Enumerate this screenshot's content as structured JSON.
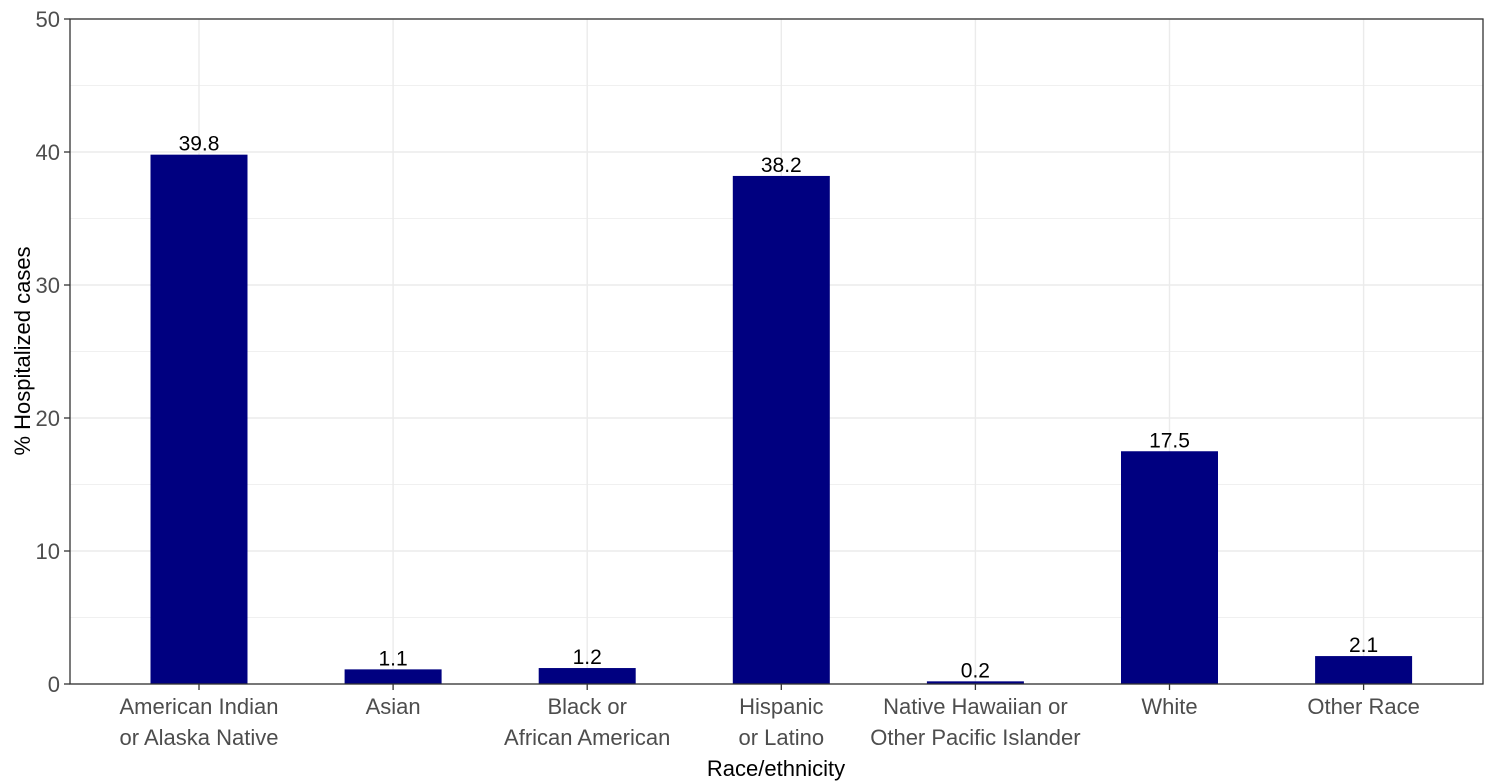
{
  "chart_data": {
    "type": "bar",
    "title": "",
    "xlabel": "Race/ethnicity",
    "ylabel": "% Hospitalized cases",
    "categories": [
      [
        "American Indian",
        "or Alaska Native"
      ],
      [
        "Asian"
      ],
      [
        "Black or",
        "African American"
      ],
      [
        "Hispanic",
        "or Latino"
      ],
      [
        "Native Hawaiian or",
        "Other Pacific Islander"
      ],
      [
        "White"
      ],
      [
        "Other Race"
      ]
    ],
    "values": [
      39.8,
      1.1,
      1.2,
      38.2,
      0.2,
      17.5,
      2.1
    ],
    "data_labels": [
      "39.8",
      "1.1",
      "1.2",
      "38.2",
      "0.2",
      "17.5",
      "2.1"
    ],
    "ylim": [
      0,
      50
    ],
    "yticks": [
      0,
      10,
      20,
      30,
      40,
      50
    ],
    "grid": true,
    "legend": "none",
    "colors": {
      "bar": "#000080",
      "grid": "#ebebeb",
      "panel_border": "#333333",
      "tick_text": "#4d4d4d"
    }
  }
}
